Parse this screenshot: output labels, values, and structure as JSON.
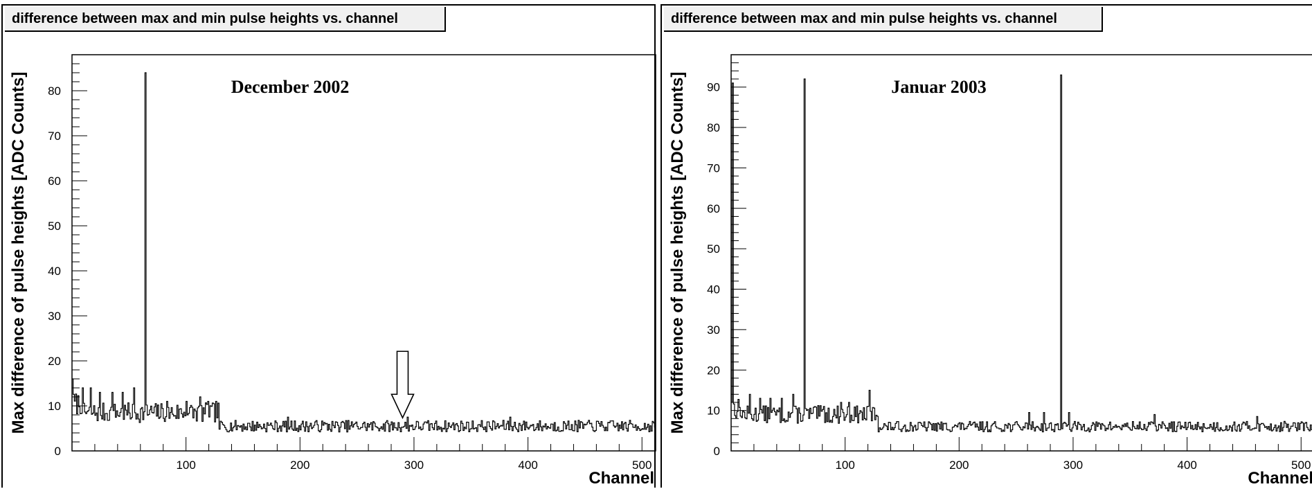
{
  "chart_data": [
    {
      "type": "histogram",
      "panel_title": "difference between max and min pulse heights vs. channel",
      "annotation": "December 2002",
      "xlabel": "Channel",
      "ylabel": "Max difference of pulse heights [ADC Counts]",
      "xlim": [
        0,
        512
      ],
      "ylim": [
        0,
        88
      ],
      "x_ticks": [
        100,
        200,
        300,
        400,
        500
      ],
      "y_ticks": [
        0,
        10,
        20,
        30,
        40,
        50,
        60,
        70,
        80
      ],
      "baseline": {
        "channels_1_10": 10.5,
        "channels_10_130": 8.5,
        "channels_130_512": 5.5
      },
      "spikes": [
        {
          "channel": 65,
          "value": 84
        },
        {
          "channel": 1,
          "value": 16
        },
        {
          "channel": 10,
          "value": 14
        },
        {
          "channel": 17,
          "value": 14
        },
        {
          "channel": 25,
          "value": 13
        },
        {
          "channel": 36,
          "value": 13
        },
        {
          "channel": 45,
          "value": 13
        },
        {
          "channel": 55,
          "value": 14
        },
        {
          "channel": 84,
          "value": 11
        },
        {
          "channel": 101,
          "value": 11
        },
        {
          "channel": 113,
          "value": 12
        },
        {
          "channel": 120,
          "value": 11
        },
        {
          "channel": 127,
          "value": 11
        },
        {
          "channel": 190,
          "value": 7.5
        },
        {
          "channel": 295,
          "value": 7.5
        },
        {
          "channel": 385,
          "value": 7.5
        }
      ],
      "arrow_channel": 290,
      "noise_seed": 7
    },
    {
      "type": "histogram",
      "panel_title": "difference between max and min pulse heights vs. channel",
      "annotation": "Januar 2003",
      "xlabel": "Channel",
      "ylabel": "Max difference of pulse heights [ADC Counts]",
      "xlim": [
        0,
        512
      ],
      "ylim": [
        0,
        98
      ],
      "x_ticks": [
        100,
        200,
        300,
        400,
        500
      ],
      "y_ticks": [
        0,
        10,
        20,
        30,
        40,
        50,
        60,
        70,
        80,
        90
      ],
      "baseline": {
        "channels_1_10": 10.5,
        "channels_10_130": 9,
        "channels_130_512": 6
      },
      "spikes": [
        {
          "channel": 2,
          "value": 91
        },
        {
          "channel": 65,
          "value": 92
        },
        {
          "channel": 290,
          "value": 93
        },
        {
          "channel": 1,
          "value": 12
        },
        {
          "channel": 17,
          "value": 14
        },
        {
          "channel": 26,
          "value": 13
        },
        {
          "channel": 35,
          "value": 13
        },
        {
          "channel": 45,
          "value": 13
        },
        {
          "channel": 55,
          "value": 14
        },
        {
          "channel": 82,
          "value": 11
        },
        {
          "channel": 97,
          "value": 12
        },
        {
          "channel": 104,
          "value": 12
        },
        {
          "channel": 122,
          "value": 15
        },
        {
          "channel": 262,
          "value": 9.5
        },
        {
          "channel": 275,
          "value": 9.5
        },
        {
          "channel": 297,
          "value": 9.5
        },
        {
          "channel": 372,
          "value": 9
        },
        {
          "channel": 462,
          "value": 8.5
        }
      ],
      "noise_seed": 13
    }
  ]
}
